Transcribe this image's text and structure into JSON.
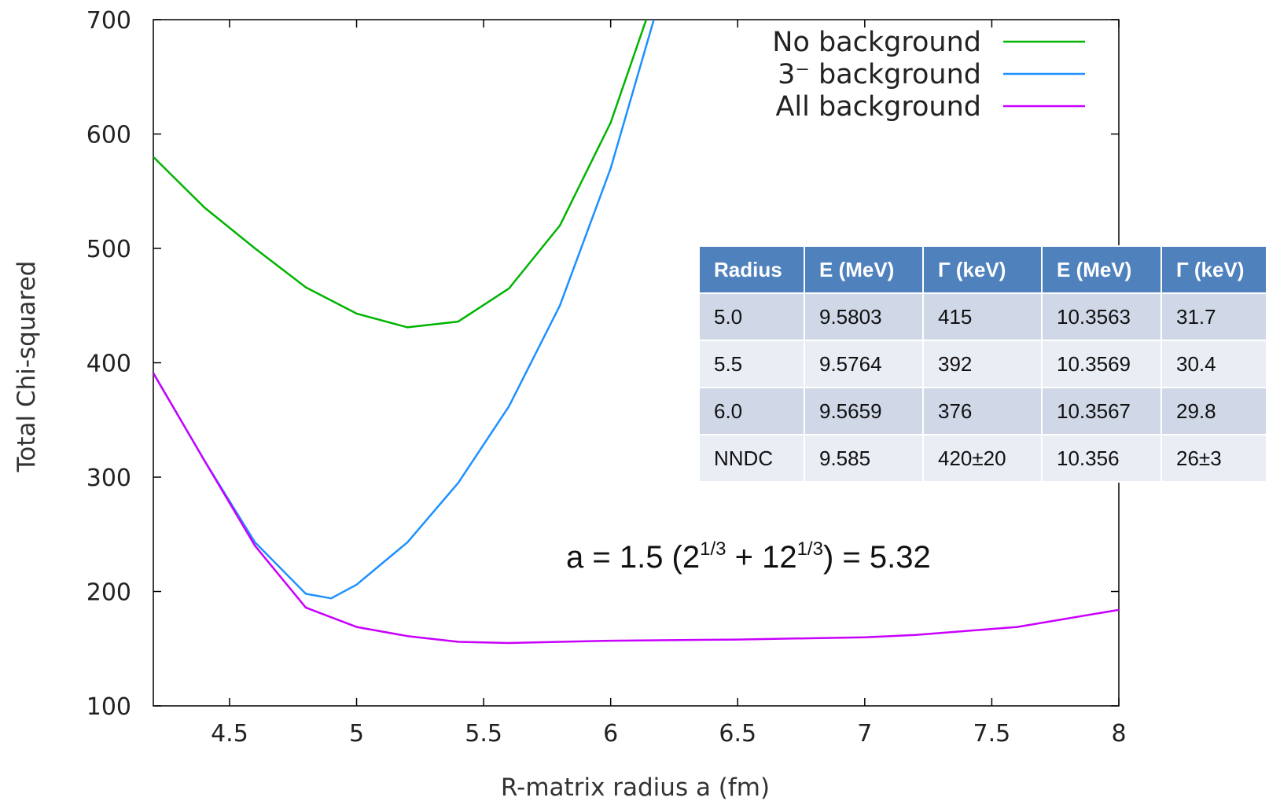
{
  "chart_data": {
    "type": "line",
    "xlabel": "R-matrix radius a (fm)",
    "ylabel": "Total Chi-squared",
    "xlim": [
      4.2,
      8
    ],
    "ylim": [
      100,
      700
    ],
    "x_ticks": [
      "4.5",
      "5",
      "5.5",
      "6",
      "6.5",
      "7",
      "7.5",
      "8"
    ],
    "y_ticks": [
      "100",
      "200",
      "300",
      "400",
      "500",
      "600",
      "700"
    ],
    "grid": false,
    "legend_position": "top-right",
    "series": [
      {
        "name": "No background",
        "color": "#00b400",
        "points": [
          [
            4.2,
            580
          ],
          [
            4.4,
            536
          ],
          [
            4.6,
            500
          ],
          [
            4.8,
            466
          ],
          [
            5.0,
            443
          ],
          [
            5.2,
            431
          ],
          [
            5.4,
            436
          ],
          [
            5.6,
            465
          ],
          [
            5.8,
            520
          ],
          [
            6.0,
            610
          ],
          [
            6.14,
            700
          ]
        ]
      },
      {
        "name": "3⁻ background",
        "color": "#1e90ff",
        "points": [
          [
            4.2,
            391
          ],
          [
            4.4,
            315
          ],
          [
            4.6,
            243
          ],
          [
            4.8,
            198
          ],
          [
            4.9,
            194
          ],
          [
            5.0,
            206
          ],
          [
            5.2,
            243
          ],
          [
            5.4,
            295
          ],
          [
            5.6,
            362
          ],
          [
            5.8,
            450
          ],
          [
            6.0,
            570
          ],
          [
            6.17,
            700
          ]
        ]
      },
      {
        "name": "All background",
        "color": "#c800ff",
        "points": [
          [
            4.2,
            391
          ],
          [
            4.4,
            315
          ],
          [
            4.6,
            240
          ],
          [
            4.8,
            186
          ],
          [
            5.0,
            169
          ],
          [
            5.2,
            161
          ],
          [
            5.4,
            156
          ],
          [
            5.6,
            155
          ],
          [
            5.8,
            156
          ],
          [
            6.0,
            157
          ],
          [
            6.5,
            158
          ],
          [
            7.0,
            160
          ],
          [
            7.2,
            162
          ],
          [
            7.6,
            169
          ],
          [
            8.0,
            184
          ]
        ]
      }
    ],
    "annotation": {
      "prefix": "a = 1.5 (2",
      "sup1": "1/3",
      "mid": " + 12",
      "sup2": "1/3",
      "suffix": ") = 5.32"
    }
  },
  "table": {
    "headers": [
      "Radius",
      "E (MeV)",
      "Γ (keV)",
      "E (MeV)",
      "Γ (keV)"
    ],
    "rows": [
      [
        "5.0",
        "9.5803",
        "415",
        "10.3563",
        "31.7"
      ],
      [
        "5.5",
        "9.5764",
        "392",
        "10.3569",
        "30.4"
      ],
      [
        "6.0",
        "9.5659",
        "376",
        "10.3567",
        "29.8"
      ],
      [
        "NNDC",
        "9.585",
        "420±20",
        "10.356",
        "26±3"
      ]
    ]
  }
}
